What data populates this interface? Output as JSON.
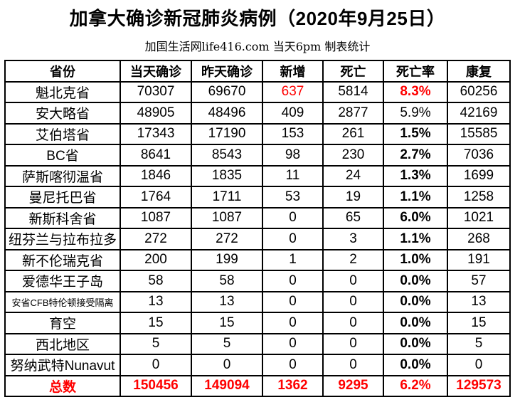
{
  "title": "加拿大确诊新冠肺炎病例（2020年9月25日）",
  "subtitle": "加国生活网life416.com 当天6pm 制表统计",
  "colors": {
    "highlight_red": "#FF0000",
    "text": "#000000",
    "border": "#000000",
    "background": "#FFFFFF"
  },
  "chart_data": {
    "type": "table",
    "title": "加拿大确诊新冠肺炎病例（2020年9月25日）",
    "subtitle": "加国生活网life416.com 当天6pm 制表统计",
    "columns": [
      "省份",
      "当天确诊",
      "昨天确诊",
      "新增",
      "死亡",
      "死亡率",
      "康复"
    ],
    "rows": [
      {
        "province": "魁北克省",
        "today": "70307",
        "yesterday": "69670",
        "new": "637",
        "deaths": "5814",
        "rate": "8.3%",
        "recovered": "60256",
        "new_red": true,
        "rate_red": true,
        "rate_bold": true,
        "province_small": false
      },
      {
        "province": "安大略省",
        "today": "48905",
        "yesterday": "48496",
        "new": "409",
        "deaths": "2877",
        "rate": "5.9%",
        "recovered": "42169",
        "new_red": false,
        "rate_red": false,
        "rate_bold": false,
        "province_small": false
      },
      {
        "province": "艾伯塔省",
        "today": "17343",
        "yesterday": "17190",
        "new": "153",
        "deaths": "261",
        "rate": "1.5%",
        "recovered": "15585",
        "new_red": false,
        "rate_red": false,
        "rate_bold": true,
        "province_small": false
      },
      {
        "province": "BC省",
        "today": "8641",
        "yesterday": "8543",
        "new": "98",
        "deaths": "230",
        "rate": "2.7%",
        "recovered": "7036",
        "new_red": false,
        "rate_red": false,
        "rate_bold": true,
        "province_small": false
      },
      {
        "province": "萨斯喀彻温省",
        "today": "1846",
        "yesterday": "1835",
        "new": "11",
        "deaths": "24",
        "rate": "1.3%",
        "recovered": "1699",
        "new_red": false,
        "rate_red": false,
        "rate_bold": true,
        "province_small": false
      },
      {
        "province": "曼尼托巴省",
        "today": "1764",
        "yesterday": "1711",
        "new": "53",
        "deaths": "19",
        "rate": "1.1%",
        "recovered": "1258",
        "new_red": false,
        "rate_red": false,
        "rate_bold": true,
        "province_small": false
      },
      {
        "province": "新斯科舍省",
        "today": "1087",
        "yesterday": "1087",
        "new": "0",
        "deaths": "65",
        "rate": "6.0%",
        "recovered": "1021",
        "new_red": false,
        "rate_red": false,
        "rate_bold": true,
        "province_small": false
      },
      {
        "province": "纽芬兰与拉布拉多",
        "today": "272",
        "yesterday": "272",
        "new": "0",
        "deaths": "3",
        "rate": "1.1%",
        "recovered": "268",
        "new_red": false,
        "rate_red": false,
        "rate_bold": true,
        "province_small": false
      },
      {
        "province": "新不伦瑞克省",
        "today": "200",
        "yesterday": "199",
        "new": "1",
        "deaths": "2",
        "rate": "1.0%",
        "recovered": "191",
        "new_red": false,
        "rate_red": false,
        "rate_bold": true,
        "province_small": false
      },
      {
        "province": "爱德华王子岛",
        "today": "58",
        "yesterday": "58",
        "new": "0",
        "deaths": "0",
        "rate": "0.0%",
        "recovered": "57",
        "new_red": false,
        "rate_red": false,
        "rate_bold": true,
        "province_small": false
      },
      {
        "province": "安省CFB特伦顿接受隔离",
        "today": "13",
        "yesterday": "13",
        "new": "0",
        "deaths": "0",
        "rate": "0.0%",
        "recovered": "13",
        "new_red": false,
        "rate_red": false,
        "rate_bold": true,
        "province_small": true
      },
      {
        "province": "育空",
        "today": "15",
        "yesterday": "15",
        "new": "0",
        "deaths": "0",
        "rate": "0.0%",
        "recovered": "15",
        "new_red": false,
        "rate_red": false,
        "rate_bold": true,
        "province_small": false
      },
      {
        "province": "西北地区",
        "today": "5",
        "yesterday": "5",
        "new": "0",
        "deaths": "0",
        "rate": "0.0%",
        "recovered": "5",
        "new_red": false,
        "rate_red": false,
        "rate_bold": true,
        "province_small": false
      },
      {
        "province": "努纳武特Nunavut",
        "today": "0",
        "yesterday": "0",
        "new": "0",
        "deaths": "0",
        "rate": "0.0%",
        "recovered": "0",
        "new_red": false,
        "rate_red": false,
        "rate_bold": true,
        "province_small": false
      }
    ],
    "totals": {
      "label": "总数",
      "today": "150456",
      "yesterday": "149094",
      "new": "1362",
      "deaths": "9295",
      "rate": "6.2%",
      "recovered": "129573"
    }
  }
}
